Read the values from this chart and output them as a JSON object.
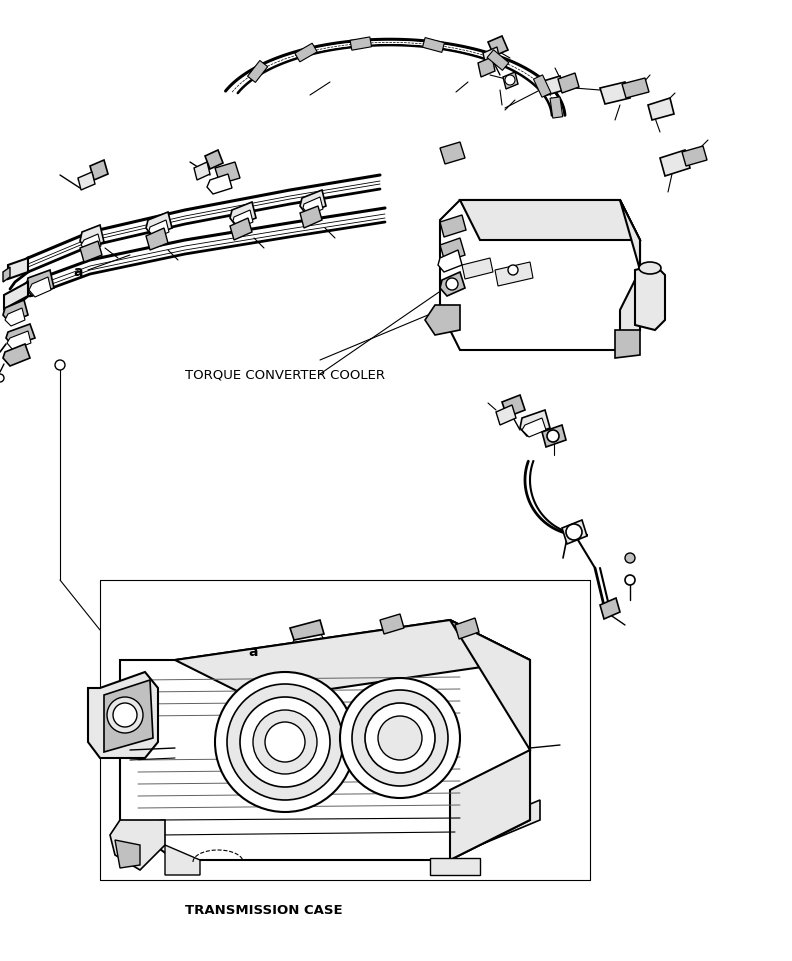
{
  "bg_color": "#ffffff",
  "label_torque": "TORQUE CONVERTER COOLER",
  "label_transmission": "TRANSMISSION CASE",
  "label_a1": "a",
  "label_a2": "a",
  "figsize": [
    7.92,
    9.61
  ],
  "dpi": 100,
  "line_color": "#000000",
  "gray_light": "#e8e8e8",
  "gray_mid": "#c0c0c0",
  "gray_dark": "#888888"
}
